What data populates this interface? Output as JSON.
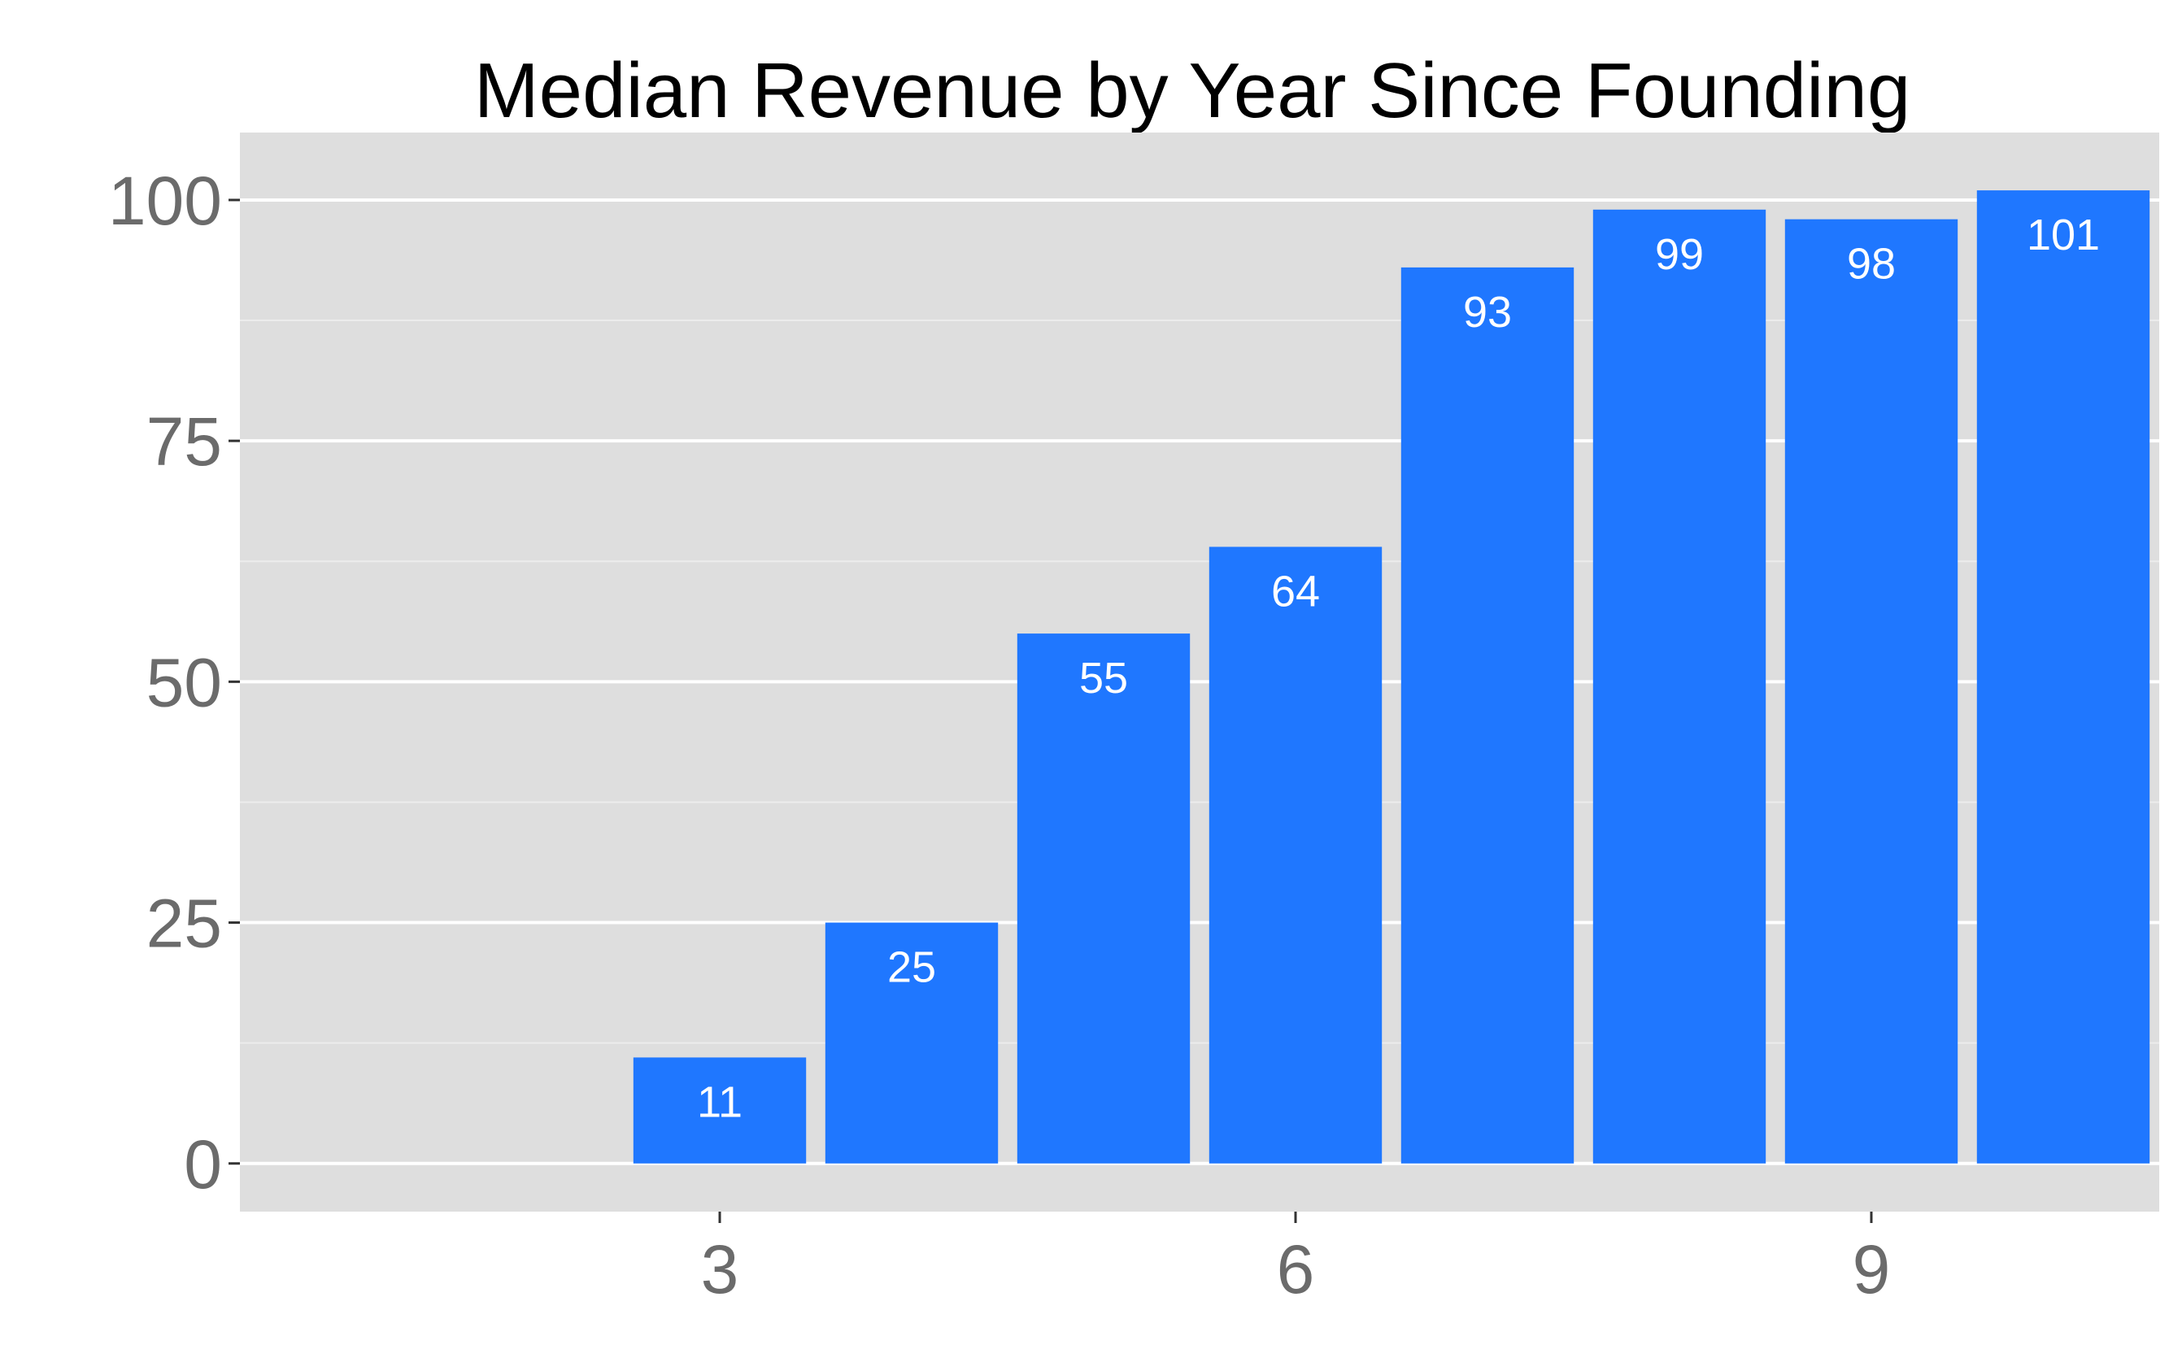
{
  "chart_data": {
    "type": "bar",
    "title": "Median Revenue by Year Since Founding",
    "xlabel": "",
    "ylabel": "",
    "x": [
      3,
      4,
      5,
      6,
      7,
      8,
      9,
      10
    ],
    "values": [
      11,
      25,
      55,
      64,
      93,
      99,
      98,
      101
    ],
    "data_labels": [
      "11",
      "25",
      "55",
      "64",
      "93",
      "99",
      "98",
      "101"
    ],
    "xlim": [
      0.5,
      10.5
    ],
    "ylim": [
      -5,
      107
    ],
    "x_ticks": [
      3,
      6,
      9
    ],
    "x_tick_labels": [
      "3",
      "6",
      "9"
    ],
    "y_ticks": [
      0,
      25,
      50,
      75,
      100
    ],
    "y_tick_labels": [
      "0",
      "25",
      "50",
      "75",
      "100"
    ],
    "y_minor_ticks": [
      12.5,
      37.5,
      62.5,
      87.5
    ],
    "grid": true,
    "legend": "none",
    "colors": {
      "bar": "#1f77ff",
      "panel_background": "#dedede",
      "grid_major": "#ffffff",
      "grid_minor": "#ececec",
      "tick_label": "#6b6b6b",
      "data_label": "#ffffff",
      "title": "#000000"
    }
  }
}
